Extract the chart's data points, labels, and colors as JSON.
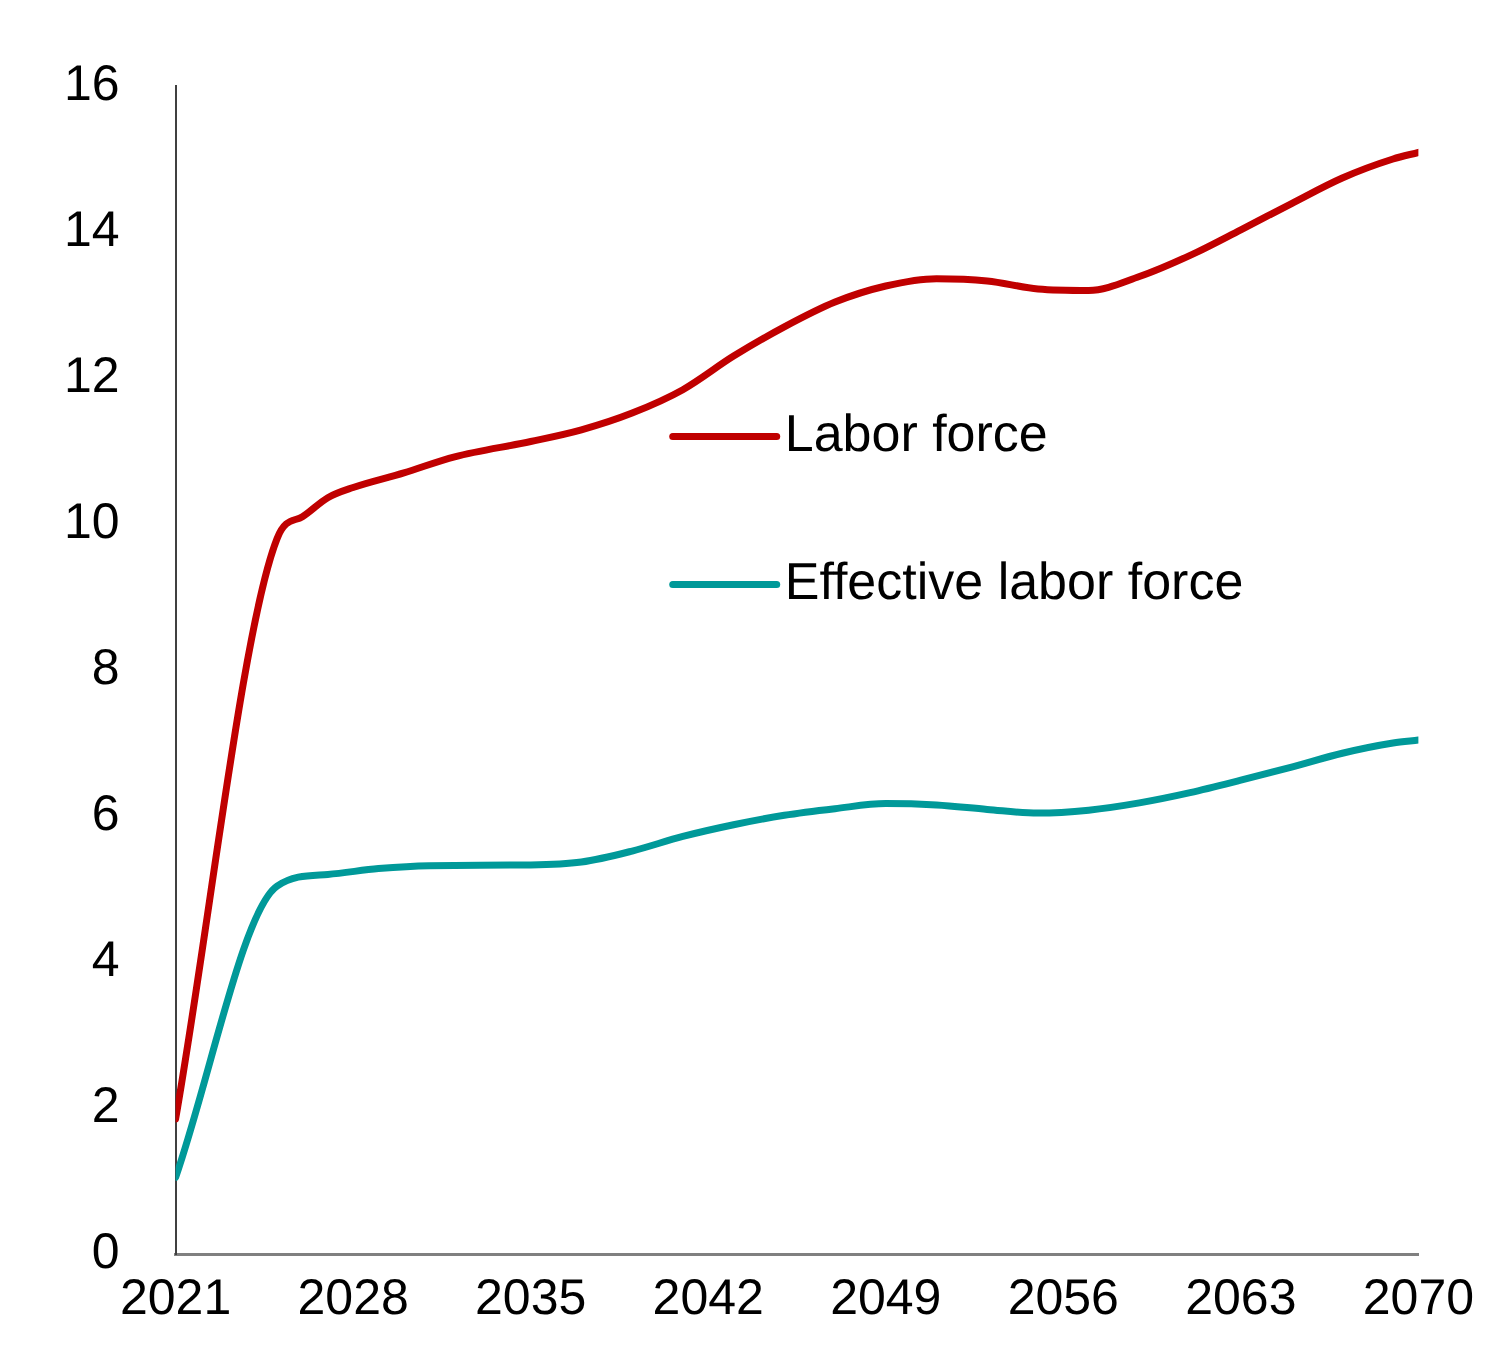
{
  "chart_data": {
    "type": "line",
    "series": [
      {
        "name": "Labor force",
        "color": "#c00000",
        "x": [
          2021,
          2025,
          2026,
          2027,
          2028,
          2030,
          2032,
          2035,
          2037,
          2039,
          2041,
          2043,
          2045,
          2047,
          2049,
          2051,
          2053,
          2055,
          2057,
          2059,
          2061,
          2063,
          2065,
          2067,
          2069,
          2070
        ],
        "values": [
          1.85,
          9.8,
          10.1,
          10.36,
          10.5,
          10.7,
          10.92,
          11.13,
          11.29,
          11.52,
          11.84,
          12.3,
          12.7,
          13.04,
          13.26,
          13.36,
          13.33,
          13.22,
          13.2,
          13.39,
          13.68,
          14.03,
          14.39,
          14.74,
          15.0,
          15.09
        ]
      },
      {
        "name": "Effective labor force",
        "color": "#009999",
        "x": [
          2021,
          2025,
          2027,
          2029,
          2031,
          2035,
          2037,
          2039,
          2041,
          2043,
          2045,
          2047,
          2049,
          2051,
          2053,
          2055,
          2057,
          2059,
          2061,
          2063,
          2065,
          2067,
          2069,
          2070
        ],
        "values": [
          1.05,
          5.04,
          5.2,
          5.28,
          5.32,
          5.33,
          5.37,
          5.52,
          5.72,
          5.88,
          6.01,
          6.1,
          6.17,
          6.15,
          6.09,
          6.04,
          6.08,
          6.18,
          6.32,
          6.49,
          6.67,
          6.86,
          7.0,
          7.04
        ]
      }
    ],
    "xlim": [
      2021,
      2070
    ],
    "xticks": [
      2021,
      2028,
      2035,
      2042,
      2049,
      2056,
      2063,
      2070
    ],
    "ylim": [
      0,
      16
    ],
    "yticks": [
      0,
      2,
      4,
      6,
      8,
      10,
      12,
      14,
      16
    ],
    "grid": false,
    "legend": "center",
    "marker": "none",
    "line_style": "solid"
  }
}
